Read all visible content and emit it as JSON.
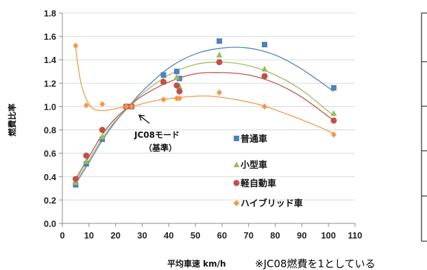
{
  "chart_data": {
    "type": "scatter",
    "xlabel": "平均車速 km/h",
    "ylabel": "燃費比率",
    "xlim": [
      0,
      110
    ],
    "ylim": [
      0.0,
      1.8
    ],
    "x_ticks": [
      "0",
      "10",
      "20",
      "30",
      "40",
      "50",
      "60",
      "70",
      "80",
      "90",
      "100",
      "110"
    ],
    "y_ticks": [
      "0.0",
      "0.2",
      "0.4",
      "0.6",
      "0.8",
      "1.0",
      "1.2",
      "1.4",
      "1.6",
      "1.8"
    ],
    "grid": "horizontal",
    "legend_position": "center-right",
    "annotation": {
      "line1": "JC08モード",
      "line2": "（基準）",
      "x": 26,
      "y": 1.0
    },
    "note": "※JC08燃費を1としている",
    "series": [
      {
        "name": "普通車",
        "marker": "square",
        "color": "#4f81bd",
        "points": [
          [
            5,
            0.33
          ],
          [
            9,
            0.51
          ],
          [
            15,
            0.72
          ],
          [
            24,
            1.0
          ],
          [
            26,
            1.0
          ],
          [
            38,
            1.27
          ],
          [
            43,
            1.3
          ],
          [
            44,
            1.24
          ],
          [
            59,
            1.56
          ],
          [
            76,
            1.53
          ],
          [
            102,
            1.16
          ]
        ],
        "curve": [
          [
            5,
            0.34
          ],
          [
            10,
            0.52
          ],
          [
            15,
            0.71
          ],
          [
            20,
            0.87
          ],
          [
            25,
            1.0
          ],
          [
            30,
            1.13
          ],
          [
            40,
            1.33
          ],
          [
            50,
            1.45
          ],
          [
            60,
            1.5
          ],
          [
            70,
            1.5
          ],
          [
            80,
            1.44
          ],
          [
            90,
            1.32
          ],
          [
            102,
            1.13
          ]
        ]
      },
      {
        "name": "小型車",
        "marker": "triangle",
        "color": "#9bbb59",
        "points": [
          [
            5,
            0.35
          ],
          [
            9,
            0.53
          ],
          [
            15,
            0.74
          ],
          [
            24,
            1.0
          ],
          [
            26,
            1.01
          ],
          [
            38,
            1.21
          ],
          [
            43,
            1.25
          ],
          [
            44,
            1.17
          ],
          [
            59,
            1.44
          ],
          [
            76,
            1.32
          ],
          [
            102,
            0.94
          ]
        ],
        "curve": [
          [
            5,
            0.36
          ],
          [
            10,
            0.54
          ],
          [
            15,
            0.73
          ],
          [
            20,
            0.88
          ],
          [
            25,
            1.0
          ],
          [
            30,
            1.11
          ],
          [
            40,
            1.27
          ],
          [
            50,
            1.36
          ],
          [
            60,
            1.38
          ],
          [
            70,
            1.35
          ],
          [
            80,
            1.27
          ],
          [
            90,
            1.14
          ],
          [
            102,
            0.92
          ]
        ]
      },
      {
        "name": "軽自動車",
        "marker": "circle",
        "color": "#c0504d",
        "points": [
          [
            5,
            0.38
          ],
          [
            9,
            0.58
          ],
          [
            15,
            0.8
          ],
          [
            24,
            1.0
          ],
          [
            26,
            1.0
          ],
          [
            38,
            1.21
          ],
          [
            43,
            1.18
          ],
          [
            44,
            1.13
          ],
          [
            59,
            1.38
          ],
          [
            76,
            1.26
          ],
          [
            102,
            0.88
          ]
        ],
        "curve": [
          [
            5,
            0.38
          ],
          [
            10,
            0.57
          ],
          [
            15,
            0.76
          ],
          [
            20,
            0.9
          ],
          [
            25,
            1.0
          ],
          [
            30,
            1.09
          ],
          [
            40,
            1.21
          ],
          [
            50,
            1.28
          ],
          [
            60,
            1.29
          ],
          [
            70,
            1.27
          ],
          [
            80,
            1.2
          ],
          [
            90,
            1.08
          ],
          [
            102,
            0.88
          ]
        ]
      },
      {
        "name": "ハイブリッド車",
        "marker": "diamond",
        "color": "#f79646",
        "points": [
          [
            5,
            1.52
          ],
          [
            9,
            1.01
          ],
          [
            15,
            1.02
          ],
          [
            24,
            1.0
          ],
          [
            26,
            1.0
          ],
          [
            38,
            1.06
          ],
          [
            43,
            1.07
          ],
          [
            44,
            1.07
          ],
          [
            59,
            1.12
          ],
          [
            76,
            1.0
          ],
          [
            102,
            0.76
          ]
        ],
        "curve": [
          [
            5,
            1.5
          ],
          [
            7,
            1.2
          ],
          [
            10,
            1.02
          ],
          [
            13,
            0.97
          ],
          [
            17,
            0.97
          ],
          [
            22,
            0.99
          ],
          [
            26,
            1.0
          ],
          [
            35,
            1.05
          ],
          [
            45,
            1.08
          ],
          [
            55,
            1.09
          ],
          [
            65,
            1.06
          ],
          [
            75,
            1.01
          ],
          [
            85,
            0.93
          ],
          [
            95,
            0.84
          ],
          [
            102,
            0.77
          ]
        ]
      }
    ]
  }
}
